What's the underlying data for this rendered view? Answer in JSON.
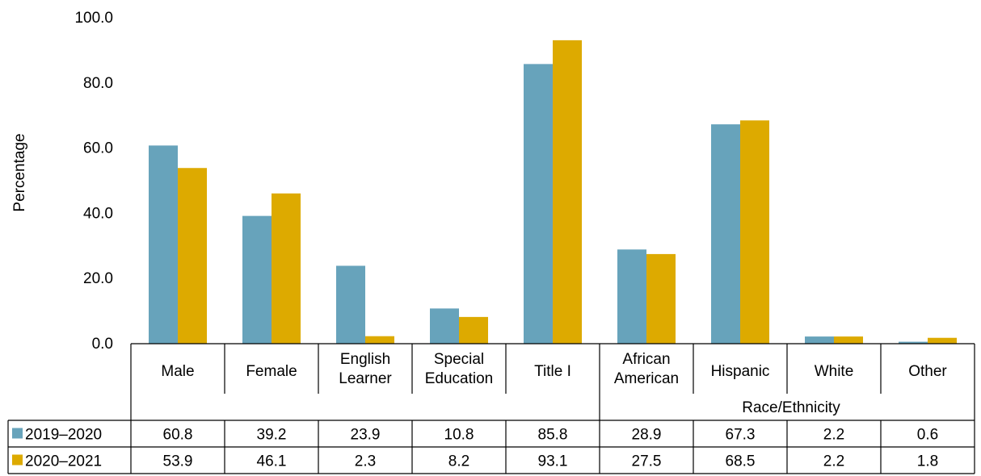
{
  "chart_data": {
    "type": "bar",
    "ylabel": "Percentage",
    "ylim": [
      0,
      100
    ],
    "yticks": [
      "0.0",
      "20.0",
      "40.0",
      "60.0",
      "80.0",
      "100.0"
    ],
    "categories": [
      [
        "Male"
      ],
      [
        "Female"
      ],
      [
        "English",
        "Learner"
      ],
      [
        "Special",
        "Education"
      ],
      [
        "Title I"
      ],
      [
        "African",
        "American"
      ],
      [
        "Hispanic"
      ],
      [
        "White"
      ],
      [
        "Other"
      ]
    ],
    "group_label": "Race/Ethnicity",
    "series": [
      {
        "name": "2019–2020",
        "color": "#67a3bb",
        "values": [
          60.8,
          39.2,
          23.9,
          10.8,
          85.8,
          28.9,
          67.3,
          2.2,
          0.6
        ]
      },
      {
        "name": "2020–2021",
        "color": "#ddaa00",
        "values": [
          53.9,
          46.1,
          2.3,
          8.2,
          93.1,
          27.5,
          68.5,
          2.2,
          1.8
        ]
      }
    ],
    "table_values": [
      [
        "60.8",
        "39.2",
        "23.9",
        "10.8",
        "85.8",
        "28.9",
        "67.3",
        "2.2",
        "0.6"
      ],
      [
        "53.9",
        "46.1",
        "2.3",
        "8.2",
        "93.1",
        "27.5",
        "68.5",
        "2.2",
        "1.8"
      ]
    ],
    "grid": false,
    "legend": "data-table"
  }
}
